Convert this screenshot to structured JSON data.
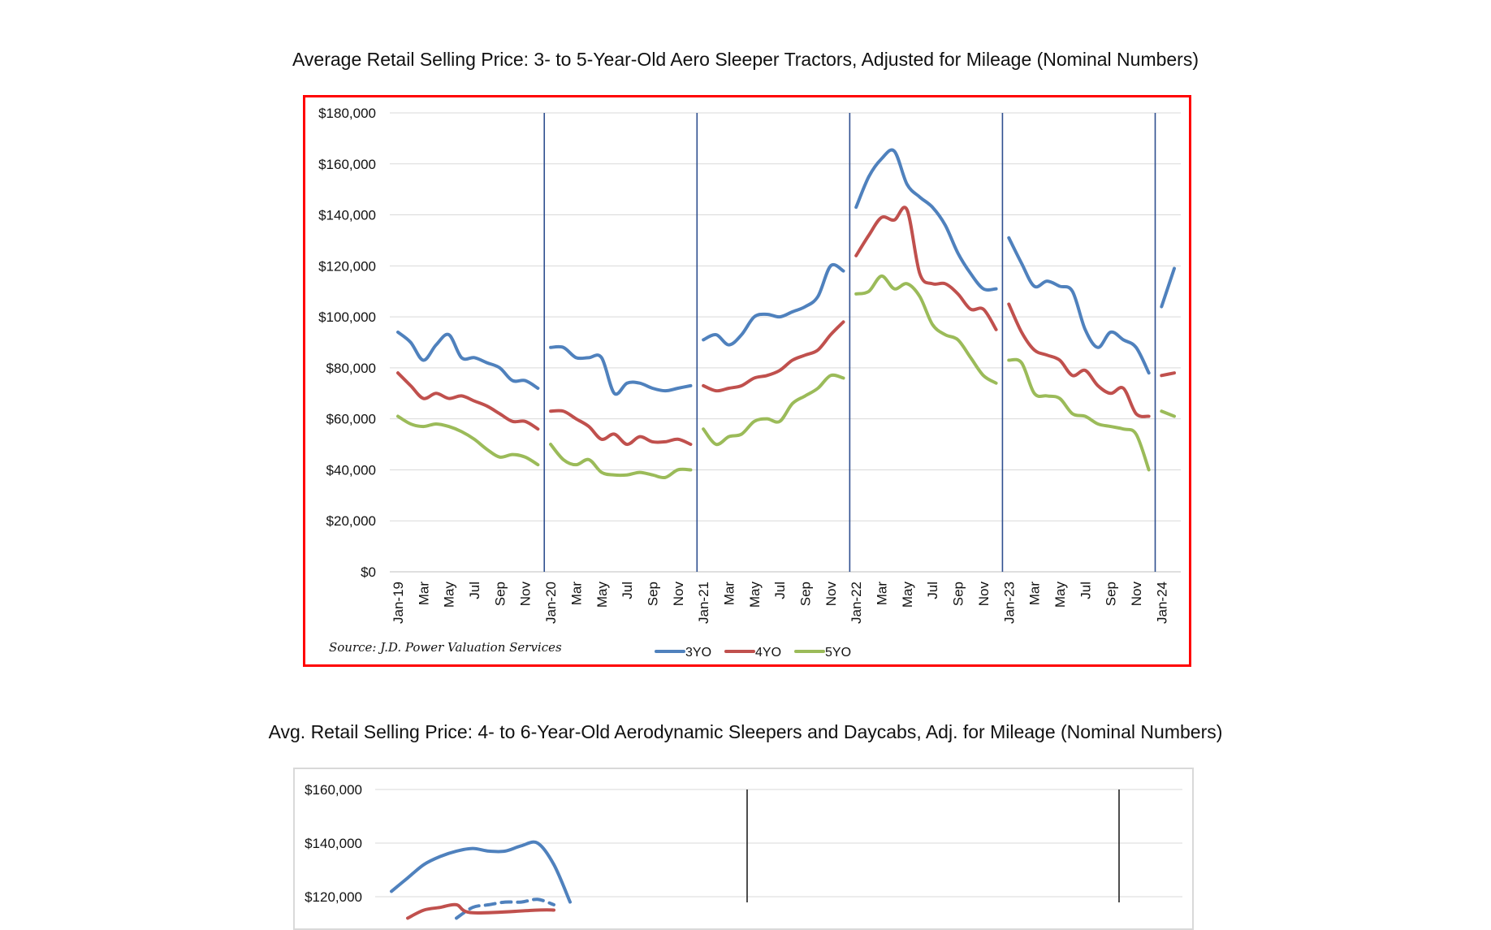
{
  "titles": {
    "chart1": "Average Retail Selling Price: 3- to 5-Year-Old Aero Sleeper Tractors, Adjusted for Mileage (Nominal Numbers)",
    "chart2": "Avg. Retail Selling Price: 4- to 6-Year-Old Aerodynamic Sleepers and Daycabs, Adj. for Mileage (Nominal Numbers)"
  },
  "colors": {
    "3YO": "#4f81bd",
    "4YO": "#c0504d",
    "5YO": "#9bbb59",
    "frame": "#ff0000",
    "divider": "#2f4f8f"
  },
  "chart_data": [
    {
      "type": "line",
      "title": "Average Retail Selling Price: 3- to 5-Year-Old Aero Sleeper Tractors, Adjusted for Mileage (Nominal Numbers)",
      "source": "Source: J.D. Power Valuation Services",
      "y_ticks": [
        "$0",
        "$20,000",
        "$40,000",
        "$60,000",
        "$80,000",
        "$100,000",
        "$120,000",
        "$140,000",
        "$160,000",
        "$180,000"
      ],
      "ylim": [
        0,
        180000
      ],
      "x_tick_labels": [
        "Jan-19",
        "Mar",
        "May",
        "Jul",
        "Sep",
        "Nov",
        "Jan-20",
        "Mar",
        "May",
        "Jul",
        "Sep",
        "Nov",
        "Jan-21",
        "Mar",
        "May",
        "Jul",
        "Sep",
        "Nov",
        "Jan-22",
        "Mar",
        "May",
        "Jul",
        "Sep",
        "Nov",
        "Jan-23",
        "Mar",
        "May",
        "Jul",
        "Sep",
        "Nov",
        "Jan-24"
      ],
      "months_per_tick": 2,
      "year_dividers": [
        "Jan-20",
        "Jan-21",
        "Jan-22",
        "Jan-23",
        "Jan-24"
      ],
      "grid": true,
      "legend": "bottom",
      "segments": [
        {
          "start": "Jan-19",
          "months": 12
        },
        {
          "start": "Jan-20",
          "months": 12
        },
        {
          "start": "Jan-21",
          "months": 12
        },
        {
          "start": "Jan-22",
          "months": 12
        },
        {
          "start": "Jan-23",
          "months": 12
        },
        {
          "start": "Jan-24",
          "months": 2
        }
      ],
      "series": [
        {
          "name": "3YO",
          "values": [
            [
              94000,
              90000,
              83000,
              89000,
              93000,
              84000,
              84000,
              82000,
              80000,
              75000,
              75000,
              72000
            ],
            [
              88000,
              88000,
              84000,
              84000,
              84000,
              70000,
              74000,
              74000,
              72000,
              71000,
              72000,
              73000
            ],
            [
              91000,
              93000,
              89000,
              93000,
              100000,
              101000,
              100000,
              102000,
              104000,
              108000,
              120000,
              118000
            ],
            [
              143000,
              155000,
              162000,
              165000,
              152000,
              147000,
              143000,
              136000,
              125000,
              117000,
              111000,
              111000
            ],
            [
              131000,
              121000,
              112000,
              114000,
              112000,
              110000,
              95000,
              88000,
              94000,
              91000,
              88000,
              78000
            ],
            [
              104000,
              119000
            ]
          ]
        },
        {
          "name": "4YO",
          "values": [
            [
              78000,
              73000,
              68000,
              70000,
              68000,
              69000,
              67000,
              65000,
              62000,
              59000,
              59000,
              56000
            ],
            [
              63000,
              63000,
              60000,
              57000,
              52000,
              54000,
              50000,
              53000,
              51000,
              51000,
              52000,
              50000
            ],
            [
              73000,
              71000,
              72000,
              73000,
              76000,
              77000,
              79000,
              83000,
              85000,
              87000,
              93000,
              98000
            ],
            [
              124000,
              132000,
              139000,
              138000,
              142000,
              117000,
              113000,
              113000,
              109000,
              103000,
              103000,
              95000
            ],
            [
              105000,
              94000,
              87000,
              85000,
              83000,
              77000,
              79000,
              73000,
              70000,
              72000,
              62000,
              61000
            ],
            [
              77000,
              78000
            ]
          ]
        },
        {
          "name": "5YO",
          "values": [
            [
              61000,
              58000,
              57000,
              58000,
              57000,
              55000,
              52000,
              48000,
              45000,
              46000,
              45000,
              42000
            ],
            [
              50000,
              44000,
              42000,
              44000,
              39000,
              38000,
              38000,
              39000,
              38000,
              37000,
              40000,
              40000
            ],
            [
              56000,
              50000,
              53000,
              54000,
              59000,
              60000,
              59000,
              66000,
              69000,
              72000,
              77000,
              76000
            ],
            [
              109000,
              110000,
              116000,
              111000,
              113000,
              108000,
              97000,
              93000,
              91000,
              84000,
              77000,
              74000
            ],
            [
              83000,
              82000,
              70000,
              69000,
              68000,
              62000,
              61000,
              58000,
              57000,
              56000,
              54000,
              40000
            ],
            [
              63000,
              61000
            ]
          ]
        }
      ]
    },
    {
      "type": "line",
      "title": "Avg. Retail Selling Price: 4- to 6-Year-Old Aerodynamic Sleepers and Daycabs, Adj. for Mileage (Nominal Numbers)",
      "y_ticks": [
        "$120,000",
        "$140,000",
        "$160,000"
      ],
      "ylim_visible": [
        120000,
        160000
      ],
      "series": [
        {
          "name": "",
          "style": "solid",
          "color": "#4f81bd",
          "values": [
            122000,
            127000,
            132000,
            135000,
            137000,
            138000,
            137000,
            137000,
            139000,
            140000,
            132000,
            118000
          ]
        },
        {
          "name": "",
          "style": "dashed",
          "color": "#4f81bd",
          "values": [
            null,
            null,
            null,
            null,
            112000,
            116000,
            117000,
            118000,
            118000,
            119000,
            117000
          ]
        },
        {
          "name": "",
          "style": "solid",
          "color": "#c0504d",
          "values": [
            null,
            112000,
            115000,
            116000,
            117000,
            114000,
            null,
            null,
            null,
            115000,
            115000
          ]
        }
      ],
      "vertical_dividers": 2
    }
  ]
}
